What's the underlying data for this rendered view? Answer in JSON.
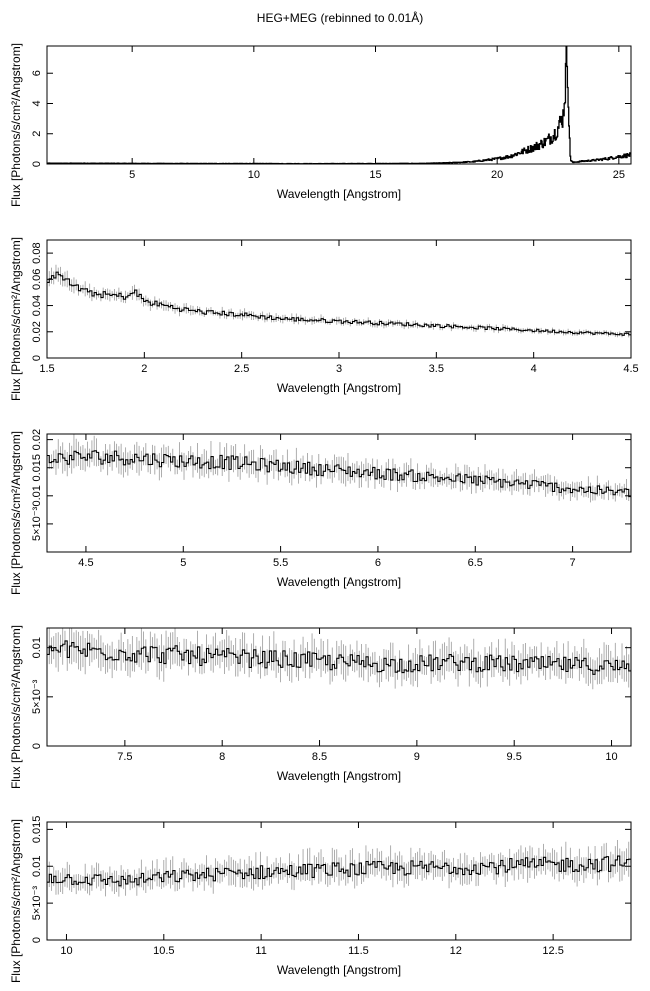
{
  "figure_title": "HEG+MEG (rebinned to 0.01Å)",
  "chart_data": [
    {
      "type": "line",
      "xlabel": "Wavelength [Angstrom]",
      "ylabel": "Flux [Photons/s/cm²/Angstrom]",
      "xlim": [
        1.5,
        25.5
      ],
      "ylim": [
        0,
        7.8
      ],
      "xticks": [
        5,
        10,
        15,
        20,
        25
      ],
      "xtick_labels": [
        "5",
        "10",
        "15",
        "20",
        "25"
      ],
      "yticks": [
        0,
        2,
        4,
        6
      ],
      "ytick_labels": [
        "0",
        "2",
        "4",
        "6"
      ],
      "x": [
        1.5,
        3,
        5,
        8,
        10,
        12,
        15,
        17,
        18,
        19,
        19.5,
        20,
        20.5,
        21,
        21.5,
        22,
        22.3,
        22.5,
        22.7,
        22.8,
        22.85,
        22.9,
        22.95,
        23.0,
        23.1,
        23.3,
        23.6,
        24,
        24.5,
        25,
        25.5
      ],
      "y": [
        0.05,
        0.05,
        0.04,
        0.03,
        0.03,
        0.02,
        0.03,
        0.04,
        0.08,
        0.15,
        0.25,
        0.35,
        0.5,
        0.8,
        1.1,
        1.5,
        1.9,
        2.4,
        3.2,
        5.5,
        7.6,
        6.0,
        2.0,
        0.3,
        0.1,
        0.15,
        0.2,
        0.25,
        0.35,
        0.5,
        0.6
      ],
      "band": "none"
    },
    {
      "type": "line",
      "xlabel": "Wavelength [Angstrom]",
      "ylabel": "Flux [Photons/s/cm²/Angstrom]",
      "xlim": [
        1.5,
        4.5
      ],
      "ylim": [
        0,
        0.09
      ],
      "xticks": [
        1.5,
        2,
        2.5,
        3,
        3.5,
        4,
        4.5
      ],
      "xtick_labels": [
        "1.5",
        "2",
        "2.5",
        "3",
        "3.5",
        "4",
        "4.5"
      ],
      "yticks": [
        0,
        0.02,
        0.04,
        0.06,
        0.08
      ],
      "ytick_labels": [
        "0",
        "0.02",
        "0.04",
        "0.06",
        "0.08"
      ],
      "x": [
        1.5,
        1.55,
        1.6,
        1.7,
        1.8,
        1.9,
        1.95,
        2.0,
        2.1,
        2.2,
        2.3,
        2.5,
        2.7,
        3.0,
        3.3,
        3.6,
        4.0,
        4.3,
        4.5
      ],
      "y": [
        0.055,
        0.068,
        0.058,
        0.05,
        0.048,
        0.047,
        0.05,
        0.043,
        0.04,
        0.037,
        0.035,
        0.033,
        0.03,
        0.028,
        0.026,
        0.024,
        0.021,
        0.019,
        0.018
      ],
      "band": "narrow"
    },
    {
      "type": "line",
      "xlabel": "Wavelength [Angstrom]",
      "ylabel": "Flux [Photons/s/cm²/Angstrom]",
      "xlim": [
        4.3,
        7.3
      ],
      "ylim": [
        0,
        0.021
      ],
      "xticks": [
        4.5,
        5,
        5.5,
        6,
        6.5,
        7
      ],
      "xtick_labels": [
        "4.5",
        "5",
        "5.5",
        "6",
        "6.5",
        "7"
      ],
      "yticks": [
        0.005,
        0.01,
        0.015,
        0.02
      ],
      "ytick_labels": [
        "5×10⁻³",
        "0.01",
        "0.015",
        "0.02"
      ],
      "x": [
        4.3,
        4.5,
        4.7,
        5.0,
        5.2,
        5.4,
        5.6,
        5.8,
        6.0,
        6.2,
        6.4,
        6.6,
        6.8,
        7.0,
        7.3
      ],
      "y": [
        0.0165,
        0.017,
        0.0168,
        0.0162,
        0.016,
        0.0155,
        0.015,
        0.0145,
        0.014,
        0.0135,
        0.013,
        0.0125,
        0.012,
        0.0112,
        0.0105
      ],
      "band": "medium"
    },
    {
      "type": "line",
      "xlabel": "Wavelength [Angstrom]",
      "ylabel": "Flux [Photons/s/cm²/Angstrom]",
      "xlim": [
        7.1,
        10.1
      ],
      "ylim": [
        0,
        0.012
      ],
      "xticks": [
        7.5,
        8,
        8.5,
        9,
        9.5,
        10
      ],
      "xtick_labels": [
        "7.5",
        "8",
        "8.5",
        "9",
        "9.5",
        "10"
      ],
      "yticks": [
        0,
        0.005,
        0.01
      ],
      "ytick_labels": [
        "0",
        "5×10⁻³",
        "0.01"
      ],
      "x": [
        7.1,
        7.3,
        7.5,
        7.7,
        8.0,
        8.3,
        8.6,
        8.9,
        9.2,
        9.5,
        9.8,
        10.1
      ],
      "y": [
        0.0098,
        0.0097,
        0.0095,
        0.0093,
        0.009,
        0.0088,
        0.0085,
        0.0083,
        0.0085,
        0.0083,
        0.0082,
        0.008
      ],
      "band": "wide"
    },
    {
      "type": "line",
      "xlabel": "Wavelength [Angstrom]",
      "ylabel": "Flux [Photons/s/cm²/Angstrom]",
      "xlim": [
        9.9,
        12.9
      ],
      "ylim": [
        0,
        0.016
      ],
      "xticks": [
        10,
        10.5,
        11,
        11.5,
        12,
        12.5
      ],
      "xtick_labels": [
        "10",
        "10.5",
        "11",
        "11.5",
        "12",
        "12.5"
      ],
      "yticks": [
        0,
        0.005,
        0.01,
        0.015
      ],
      "ytick_labels": [
        "0",
        "5×10⁻³",
        "0.01",
        "0.015"
      ],
      "x": [
        9.9,
        10.1,
        10.3,
        10.5,
        10.8,
        11.0,
        11.3,
        11.6,
        11.9,
        12.2,
        12.5,
        12.9
      ],
      "y": [
        0.0085,
        0.0082,
        0.008,
        0.0085,
        0.009,
        0.0092,
        0.0095,
        0.0097,
        0.0098,
        0.01,
        0.0102,
        0.0104
      ],
      "band": "wide"
    }
  ]
}
